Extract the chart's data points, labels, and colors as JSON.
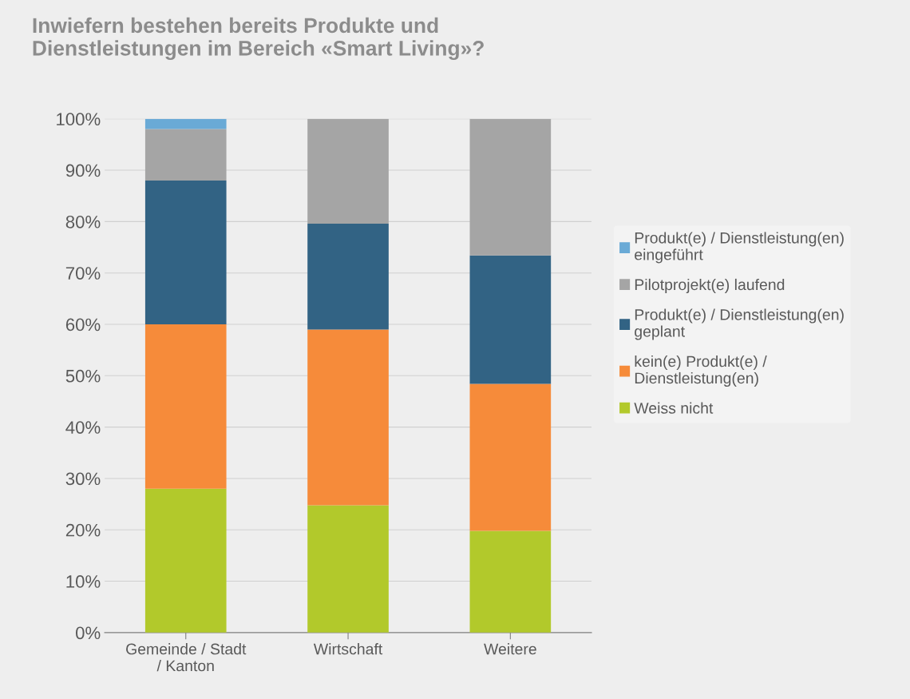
{
  "chart_data": {
    "type": "bar",
    "stacked": true,
    "title": "Inwiefern bestehen bereits Produkte und\nDienstleistungen im Bereich «Smart Living»?",
    "categories": [
      "Gemeinde / Stadt\n/ Kanton",
      "Wirtschaft",
      "Weitere"
    ],
    "series": [
      {
        "name": "Weiss nicht",
        "color": "#b2c92b",
        "values": [
          28,
          24.8,
          19.8
        ]
      },
      {
        "name": "kein(e) Produkt(e) /\nDienstleistung(en)",
        "color": "#f68b3a",
        "values": [
          32,
          34.2,
          28.6
        ]
      },
      {
        "name": "Produkt(e) / Dienstleistung(en)\ngeplant",
        "color": "#326384",
        "values": [
          28,
          20.6,
          25
        ]
      },
      {
        "name": "Pilotprojekt(e) laufend",
        "color": "#a5a5a5",
        "values": [
          10,
          20.4,
          26.6
        ]
      },
      {
        "name": "Produkt(e) / Dienstleistung(en)\neingeführt",
        "color": "#6aaad6",
        "values": [
          2,
          0,
          0
        ]
      }
    ],
    "ylim": [
      0,
      100
    ],
    "yticks": [
      {
        "value": 0,
        "label": "0%"
      },
      {
        "value": 10,
        "label": "10%"
      },
      {
        "value": 20,
        "label": "20%"
      },
      {
        "value": 30,
        "label": "30%"
      },
      {
        "value": 40,
        "label": "40%"
      },
      {
        "value": 50,
        "label": "50%"
      },
      {
        "value": 60,
        "label": "60%"
      },
      {
        "value": 70,
        "label": "70%"
      },
      {
        "value": 80,
        "label": "80%"
      },
      {
        "value": 90,
        "label": "90%"
      },
      {
        "value": 100,
        "label": "100%"
      }
    ],
    "grid": "y",
    "legend": "right"
  }
}
